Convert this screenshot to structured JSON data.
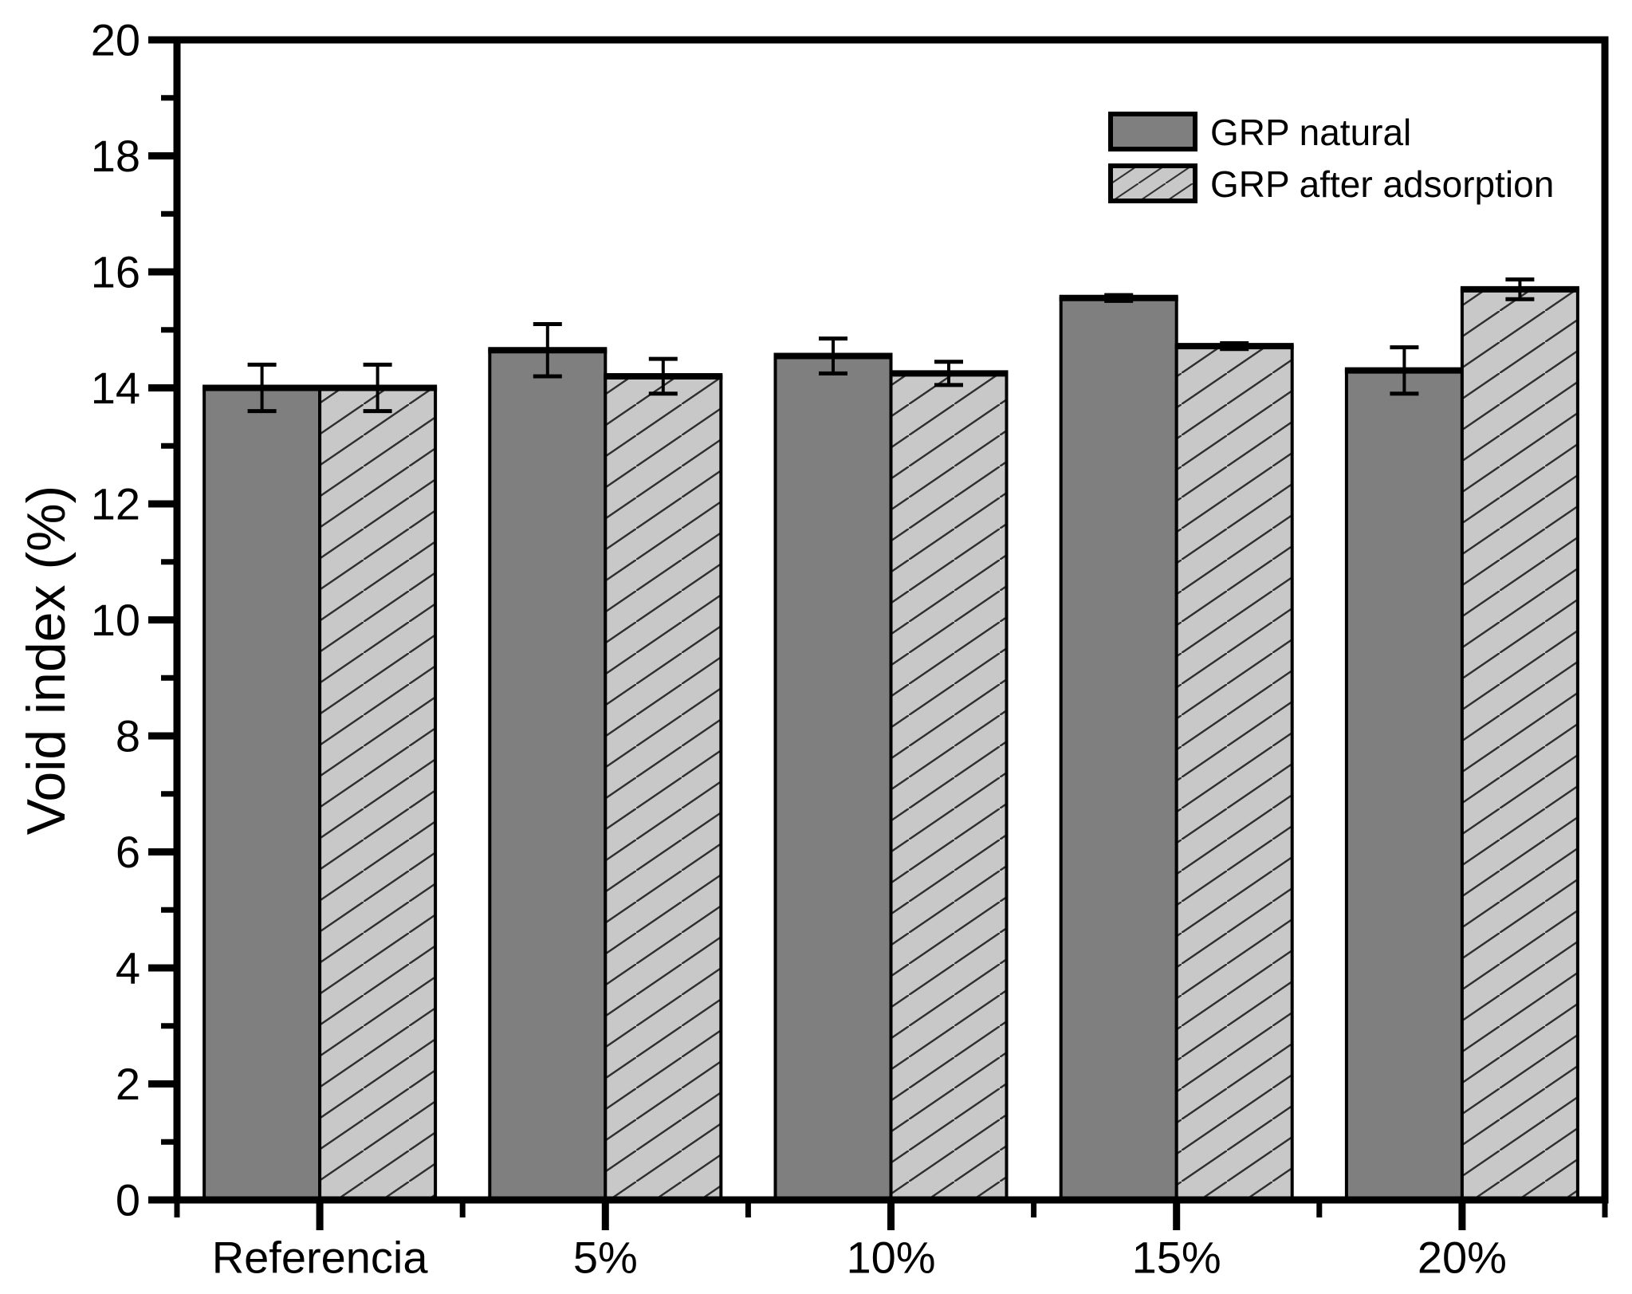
{
  "chart_data": {
    "type": "bar",
    "title": "",
    "xlabel": "",
    "ylabel": "Void index (%)",
    "categories": [
      "Referencia",
      "5%",
      "10%",
      "15%",
      "20%"
    ],
    "series": [
      {
        "name": "GRP natural",
        "values": [
          14.0,
          14.65,
          14.55,
          15.55,
          14.3
        ],
        "errors": [
          0.4,
          0.45,
          0.3,
          0.05,
          0.4
        ],
        "color": "#7f7f7f",
        "pattern": "solid"
      },
      {
        "name": "GRP after adsorption",
        "values": [
          14.0,
          14.2,
          14.25,
          14.72,
          15.7
        ],
        "errors": [
          0.4,
          0.3,
          0.2,
          0.05,
          0.17
        ],
        "color": "#c8c8c8",
        "pattern": "diagonal-hatch"
      }
    ],
    "ylim": [
      0,
      20
    ],
    "y_major_step": 2,
    "y_minor_step": 1,
    "y_tick_labels": [
      "0",
      "2",
      "4",
      "6",
      "8",
      "10",
      "12",
      "14",
      "16",
      "18",
      "20"
    ],
    "legend_position": "top-right",
    "grid": false,
    "axis_color": "#000000",
    "bar_outline_color": "#000000",
    "hatch_line_color": "#2f2f2f",
    "error_bar_color": "#000000",
    "background_color": "#ffffff"
  }
}
